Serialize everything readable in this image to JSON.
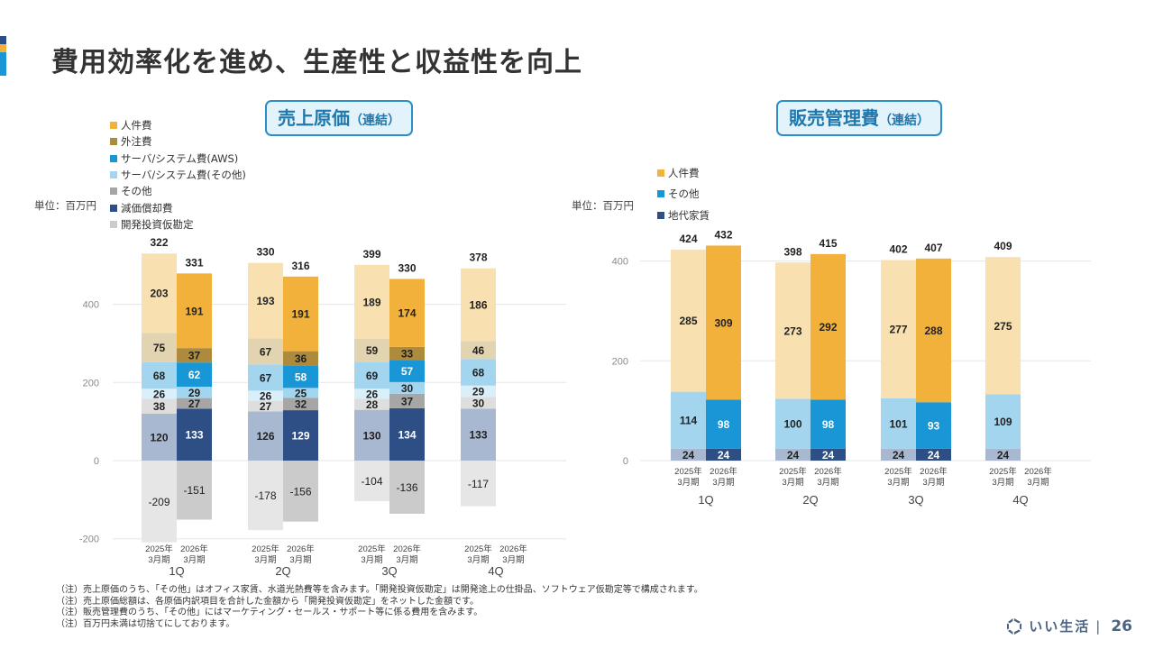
{
  "page": {
    "title": "費用効率化を進め、生産性と収益性を向上",
    "accent_colors": [
      "#2d4f86",
      "#f2b13b",
      "#1896d6"
    ],
    "page_number": "26",
    "brand": "いい生活",
    "separator": "|"
  },
  "notes": [
    "（注）売上原価のうち、「その他」はオフィス家賃、水道光熱費等を含みます。「開発投資仮勘定」は開発途上の仕掛品、ソフトウェア仮勘定等で構成されます。",
    "（注）売上原価総額は、各原価内訳項目を合計した金額から「開発投資仮勘定」をネットした金額です。",
    "（注）販売管理費のうち、「その他」にはマーケティング・セールス・サポート等に係る費用を含みます。",
    "（注）百万円未満は切捨てにしております。"
  ],
  "chart_data": [
    {
      "type": "bar",
      "stacked": true,
      "title": "売上原価",
      "title_suffix": "（連結）",
      "unit_label": "単位：百万円",
      "ylim": [
        -200,
        530
      ],
      "yticks": [
        -200,
        0,
        200,
        400
      ],
      "grid": true,
      "legend_position": "top-left",
      "quarters": [
        "1Q",
        "2Q",
        "3Q",
        "4Q"
      ],
      "periods": [
        "2025年\n3月期",
        "2026年\n3月期"
      ],
      "period_line1": [
        "2025年",
        "2026年"
      ],
      "period_line2": [
        "3月期",
        "3月期"
      ],
      "series": [
        {
          "name": "減価償却費",
          "color_prev": "#a9b8d1",
          "color_curr": "#2d4f86",
          "label_prev": "#222",
          "label_curr": "#ffffff",
          "values_prev": [
            120,
            126,
            130,
            133
          ],
          "values_curr": [
            133,
            129,
            134,
            null
          ]
        },
        {
          "name": "その他",
          "color_prev": "#dedede",
          "color_curr": "#a6a6a6",
          "label_prev": "#222",
          "label_curr": "#222",
          "values_prev": [
            38,
            27,
            28,
            30
          ],
          "values_curr": [
            27,
            32,
            37,
            null
          ]
        },
        {
          "name": "サーバ/システム費(その他)",
          "color_prev": "#d9eff9",
          "color_curr": "#a3d5ef",
          "label_prev": "#222",
          "label_curr": "#222",
          "values_prev": [
            26,
            26,
            26,
            29
          ],
          "values_curr": [
            29,
            25,
            30,
            null
          ]
        },
        {
          "name": "サーバ/システム費(AWS)",
          "color_prev": "#a3d5ef",
          "color_curr": "#1896d6",
          "label_prev": "#222",
          "label_curr": "#ffffff",
          "values_prev": [
            68,
            67,
            69,
            68
          ],
          "values_curr": [
            62,
            58,
            57,
            null
          ]
        },
        {
          "name": "外注費",
          "color_prev": "#e2d4b0",
          "color_curr": "#ad8a3c",
          "label_prev": "#222",
          "label_curr": "#222",
          "values_prev": [
            75,
            67,
            59,
            46
          ],
          "values_curr": [
            37,
            36,
            33,
            null
          ]
        },
        {
          "name": "人件費",
          "color_prev": "#f9e0b0",
          "color_curr": "#f2b13b",
          "label_prev": "#222",
          "label_curr": "#222",
          "values_prev": [
            203,
            193,
            189,
            186
          ],
          "values_curr": [
            191,
            191,
            174,
            null
          ]
        },
        {
          "name": "開発投資仮勘定",
          "color_prev": "#e6e6e6",
          "color_curr": "#cbcbcb",
          "label_prev": "#222",
          "label_curr": "#222",
          "negative": true,
          "values_prev": [
            -209,
            -178,
            -104,
            -117
          ],
          "values_curr": [
            -151,
            -156,
            -136,
            null
          ]
        }
      ],
      "legend": [
        {
          "name": "人件費",
          "color": "#f2b13b"
        },
        {
          "name": "外注費",
          "color": "#ad8a3c"
        },
        {
          "name": "サーバ/システム費(AWS)",
          "color": "#1896d6"
        },
        {
          "name": "サーバ/システム費(その他)",
          "color": "#a3d5ef"
        },
        {
          "name": "その他",
          "color": "#a6a6a6"
        },
        {
          "name": "減価償却費",
          "color": "#2d4f86"
        },
        {
          "name": "開発投資仮勘定",
          "color": "#cbcbcb"
        }
      ],
      "totals_prev": [
        322,
        330,
        399,
        378
      ],
      "totals_curr": [
        331,
        316,
        330,
        null
      ]
    },
    {
      "type": "bar",
      "stacked": true,
      "title": "販売管理費",
      "title_suffix": "（連結）",
      "unit_label": "単位：百万円",
      "ylim": [
        0,
        430
      ],
      "yticks": [
        0,
        200,
        400
      ],
      "grid": true,
      "legend_position": "top-left",
      "quarters": [
        "1Q",
        "2Q",
        "3Q",
        "4Q"
      ],
      "period_line1": [
        "2025年",
        "2026年"
      ],
      "period_line2": [
        "3月期",
        "3月期"
      ],
      "series": [
        {
          "name": "地代家賃",
          "color_prev": "#a9b8d1",
          "color_curr": "#2d4f86",
          "label_prev": "#222",
          "label_curr": "#ffffff",
          "values_prev": [
            24,
            24,
            24,
            24
          ],
          "values_curr": [
            24,
            24,
            24,
            null
          ]
        },
        {
          "name": "その他",
          "color_prev": "#a3d5ef",
          "color_curr": "#1896d6",
          "label_prev": "#222",
          "label_curr": "#ffffff",
          "values_prev": [
            114,
            100,
            101,
            109
          ],
          "values_curr": [
            98,
            98,
            93,
            null
          ]
        },
        {
          "name": "人件費",
          "color_prev": "#f9e0b0",
          "color_curr": "#f2b13b",
          "label_prev": "#222",
          "label_curr": "#222",
          "values_prev": [
            285,
            273,
            277,
            275
          ],
          "values_curr": [
            309,
            292,
            288,
            null
          ]
        }
      ],
      "legend": [
        {
          "name": "人件費",
          "color": "#f2b13b"
        },
        {
          "name": "その他",
          "color": "#1896d6"
        },
        {
          "name": "地代家賃",
          "color": "#2d4f86"
        }
      ],
      "totals_prev": [
        424,
        398,
        402,
        409
      ],
      "totals_curr": [
        432,
        415,
        407,
        null
      ]
    }
  ]
}
